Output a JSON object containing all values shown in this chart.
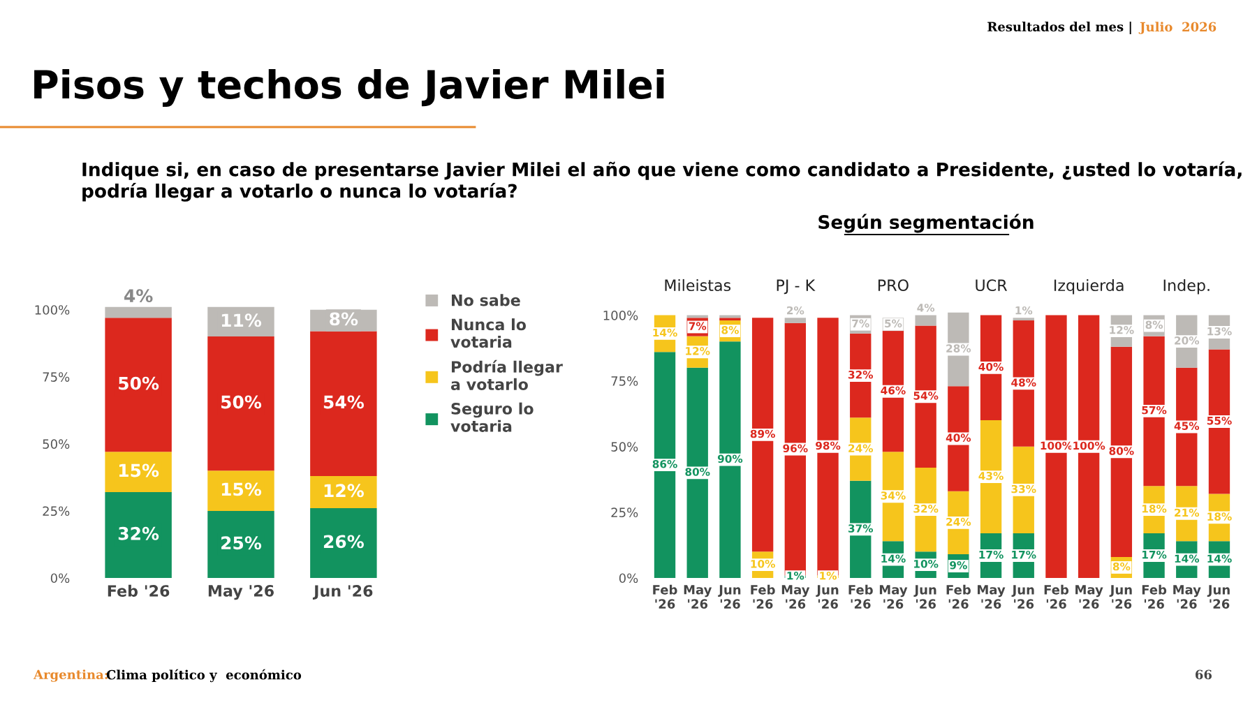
{
  "chart_data": [
    {
      "type": "bar",
      "stacked": true,
      "title": "Pisos y techos de Javier Milei",
      "subtitle": "Indique si, en caso de presentarse Javier Milei el año que viene como candidato a Presidente, ¿usted lo votaría, podría llegar a votarlo o nunca lo votaría?",
      "categories": [
        "Feb '26",
        "May '26",
        "Jun '26"
      ],
      "series": [
        {
          "name": "Seguro lo votaria",
          "color": "#12935f",
          "values": [
            32,
            25,
            26
          ],
          "value_labels": [
            "32%",
            "25%",
            "26%"
          ]
        },
        {
          "name": "Podría llegar a votarlo",
          "color": "#f6c51c",
          "values": [
            15,
            15,
            12
          ],
          "value_labels": [
            "15%",
            "15%",
            "12%"
          ]
        },
        {
          "name": "Nunca lo votaria",
          "color": "#dc281e",
          "values": [
            50,
            50,
            54
          ],
          "value_labels": [
            "50%",
            "50%",
            "54%"
          ]
        },
        {
          "name": "No sabe",
          "color": "#bdbab6",
          "values": [
            4,
            11,
            8
          ],
          "value_labels": [
            "4%",
            "11%",
            "8%"
          ]
        }
      ],
      "legend": "right",
      "grid": false,
      "ylim": [
        0,
        102
      ],
      "yticks": [
        {
          "value": 0,
          "label": "0%"
        },
        {
          "value": 25,
          "label": "25%"
        },
        {
          "value": 50,
          "label": "50%"
        },
        {
          "value": 75,
          "label": "75%"
        },
        {
          "value": 100,
          "label": "100%"
        }
      ],
      "annotations": [
        "Resultados del mes |",
        "Julio  2026",
        "Argentina:",
        "Clima político y  económico",
        "66"
      ]
    },
    {
      "type": "bar",
      "stacked": true,
      "title": "Según segmentación",
      "categories": [
        "Feb\n'26",
        "May\n'26",
        "Jun\n'26",
        "Feb\n'26",
        "May\n'26",
        "Jun\n'26",
        "Feb\n'26",
        "May\n'26",
        "Jun\n'26",
        "Feb\n'26",
        "May\n'26",
        "Jun\n'26",
        "Feb\n'26",
        "May\n'26",
        "Jun\n'26",
        "Feb\n'26",
        "May\n'26",
        "Jun\n'26"
      ],
      "series": [
        {
          "color": "#12935f",
          "values": [
            86,
            80,
            90,
            null,
            1,
            null,
            37,
            14,
            10,
            9,
            17,
            17,
            null,
            null,
            null,
            17,
            14,
            14
          ],
          "value_labels": [
            "86%",
            "80%",
            "90%",
            null,
            "1%",
            null,
            "37%",
            "14%",
            "10%",
            "9%",
            "17%",
            "17%",
            null,
            null,
            null,
            "17%",
            "14%",
            "14%"
          ]
        },
        {
          "color": "#f6c51c",
          "values": [
            14,
            12,
            8,
            10,
            null,
            1,
            24,
            34,
            32,
            24,
            43,
            33,
            null,
            null,
            8,
            18,
            21,
            18
          ],
          "value_labels": [
            "14%",
            "12%",
            "8%",
            "10%",
            null,
            "1%",
            "24%",
            "34%",
            "32%",
            "24%",
            "43%",
            "33%",
            null,
            null,
            "8%",
            "18%",
            "21%",
            "18%"
          ]
        },
        {
          "color": "#dc281e",
          "values": [
            null,
            7,
            1,
            89,
            96,
            98,
            32,
            46,
            54,
            40,
            40,
            48,
            100,
            100,
            80,
            57,
            45,
            55
          ],
          "value_labels": [
            null,
            "7%",
            null,
            "89%",
            "96%",
            "98%",
            "32%",
            "46%",
            "54%",
            "40%",
            "40%",
            "48%",
            "100%",
            "100%",
            "80%",
            "57%",
            "45%",
            "55%"
          ]
        },
        {
          "color": "#bdbab6",
          "values": [
            null,
            1,
            1,
            null,
            2,
            null,
            7,
            5,
            4,
            28,
            null,
            1,
            null,
            null,
            12,
            8,
            20,
            13
          ],
          "value_labels": [
            null,
            null,
            null,
            null,
            "2%",
            null,
            "7%",
            "5%",
            "4%",
            "28%",
            null,
            "1%",
            null,
            null,
            "12%",
            "8%",
            "20%",
            "13%"
          ]
        }
      ],
      "grid": false,
      "ylim": [
        0,
        102
      ],
      "yticks": [
        {
          "value": 0,
          "label": "0%"
        },
        {
          "value": 25,
          "label": "25%"
        },
        {
          "value": 50,
          "label": "50%"
        },
        {
          "value": 75,
          "label": "75%"
        },
        {
          "value": 100,
          "label": "100%"
        }
      ],
      "annotations": [
        "Mileistas",
        "PJ - K",
        "PRO",
        "UCR",
        "Izquierda",
        "Indep."
      ]
    }
  ]
}
